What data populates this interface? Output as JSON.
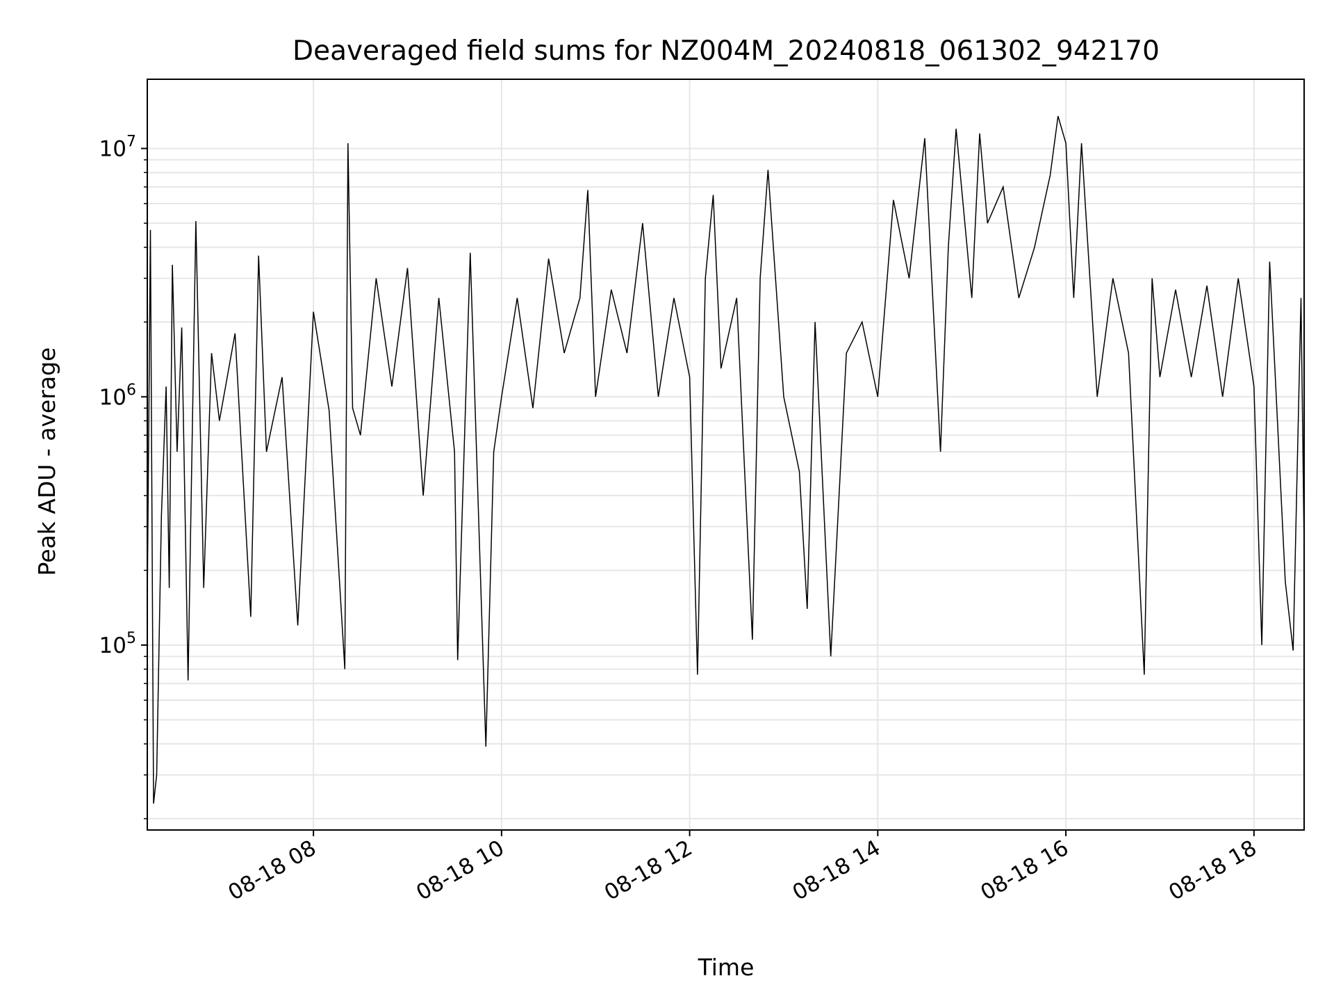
{
  "chart_data": {
    "type": "line",
    "title": "Deaveraged field sums for NZ004M_20240818_061302_942170",
    "xlabel": "Time",
    "ylabel": "Peak ADU - average",
    "y_scale": "log",
    "ylim": [
      18000,
      19000000
    ],
    "xlim": [
      "2024-08-18 06:14",
      "2024-08-18 18:32"
    ],
    "grid": true,
    "line_color": "#000000",
    "grid_color": "#e6e6e6",
    "x_ticks": [
      {
        "time": "2024-08-18 08:00",
        "label": "08-18 08"
      },
      {
        "time": "2024-08-18 10:00",
        "label": "08-18 10"
      },
      {
        "time": "2024-08-18 12:00",
        "label": "08-18 12"
      },
      {
        "time": "2024-08-18 14:00",
        "label": "08-18 14"
      },
      {
        "time": "2024-08-18 16:00",
        "label": "08-18 16"
      },
      {
        "time": "2024-08-18 18:00",
        "label": "08-18 18"
      }
    ],
    "y_ticks": [
      {
        "value": 100000,
        "base": "10",
        "exp": "5"
      },
      {
        "value": 1000000,
        "base": "10",
        "exp": "6"
      },
      {
        "value": 10000000,
        "base": "10",
        "exp": "7"
      }
    ],
    "series": [
      {
        "x": [
          "2024-08-18 06:14",
          "2024-08-18 06:16",
          "2024-08-18 06:18",
          "2024-08-18 06:20",
          "2024-08-18 06:23",
          "2024-08-18 06:26",
          "2024-08-18 06:28",
          "2024-08-18 06:30",
          "2024-08-18 06:33",
          "2024-08-18 06:36",
          "2024-08-18 06:40",
          "2024-08-18 06:45",
          "2024-08-18 06:50",
          "2024-08-18 06:55",
          "2024-08-18 07:00",
          "2024-08-18 07:10",
          "2024-08-18 07:20",
          "2024-08-18 07:25",
          "2024-08-18 07:30",
          "2024-08-18 07:40",
          "2024-08-18 07:50",
          "2024-08-18 08:00",
          "2024-08-18 08:10",
          "2024-08-18 08:20",
          "2024-08-18 08:22",
          "2024-08-18 08:25",
          "2024-08-18 08:30",
          "2024-08-18 08:40",
          "2024-08-18 08:50",
          "2024-08-18 09:00",
          "2024-08-18 09:10",
          "2024-08-18 09:20",
          "2024-08-18 09:30",
          "2024-08-18 09:32",
          "2024-08-18 09:40",
          "2024-08-18 09:50",
          "2024-08-18 09:55",
          "2024-08-18 10:00",
          "2024-08-18 10:10",
          "2024-08-18 10:20",
          "2024-08-18 10:30",
          "2024-08-18 10:40",
          "2024-08-18 10:50",
          "2024-08-18 10:55",
          "2024-08-18 11:00",
          "2024-08-18 11:10",
          "2024-08-18 11:20",
          "2024-08-18 11:30",
          "2024-08-18 11:40",
          "2024-08-18 11:50",
          "2024-08-18 12:00",
          "2024-08-18 12:05",
          "2024-08-18 12:10",
          "2024-08-18 12:15",
          "2024-08-18 12:20",
          "2024-08-18 12:30",
          "2024-08-18 12:40",
          "2024-08-18 12:45",
          "2024-08-18 12:50",
          "2024-08-18 13:00",
          "2024-08-18 13:10",
          "2024-08-18 13:15",
          "2024-08-18 13:20",
          "2024-08-18 13:30",
          "2024-08-18 13:40",
          "2024-08-18 13:50",
          "2024-08-18 14:00",
          "2024-08-18 14:10",
          "2024-08-18 14:20",
          "2024-08-18 14:30",
          "2024-08-18 14:40",
          "2024-08-18 14:45",
          "2024-08-18 14:50",
          "2024-08-18 15:00",
          "2024-08-18 15:05",
          "2024-08-18 15:10",
          "2024-08-18 15:20",
          "2024-08-18 15:30",
          "2024-08-18 15:40",
          "2024-08-18 15:50",
          "2024-08-18 15:55",
          "2024-08-18 16:00",
          "2024-08-18 16:05",
          "2024-08-18 16:10",
          "2024-08-18 16:20",
          "2024-08-18 16:30",
          "2024-08-18 16:40",
          "2024-08-18 16:50",
          "2024-08-18 16:55",
          "2024-08-18 17:00",
          "2024-08-18 17:10",
          "2024-08-18 17:20",
          "2024-08-18 17:30",
          "2024-08-18 17:40",
          "2024-08-18 17:50",
          "2024-08-18 18:00",
          "2024-08-18 18:05",
          "2024-08-18 18:10",
          "2024-08-18 18:20",
          "2024-08-18 18:25",
          "2024-08-18 18:30",
          "2024-08-18 18:32"
        ],
        "y": [
          150000,
          4700000,
          23000,
          30000,
          330000,
          1100000,
          170000,
          3400000,
          600000,
          1900000,
          72000,
          5100000,
          170000,
          1500000,
          800000,
          1800000,
          130000,
          3700000,
          600000,
          1200000,
          120000,
          2200000,
          880000,
          80000,
          10500000,
          900000,
          700000,
          3000000,
          1100000,
          3300000,
          400000,
          2500000,
          600000,
          87000,
          3800000,
          39000,
          600000,
          1000000,
          2500000,
          900000,
          3600000,
          1500000,
          2500000,
          6800000,
          1000000,
          2700000,
          1500000,
          5000000,
          1000000,
          2500000,
          1200000,
          76000,
          3000000,
          6500000,
          1300000,
          2500000,
          105000,
          3000000,
          8200000,
          1000000,
          500000,
          140000,
          2000000,
          90000,
          1500000,
          2000000,
          1000000,
          6200000,
          3000000,
          11000000,
          600000,
          4000000,
          12000000,
          2500000,
          11500000,
          5000000,
          7000000,
          2500000,
          4000000,
          7800000,
          13500000,
          10500000,
          2500000,
          10500000,
          1000000,
          3000000,
          1500000,
          76000,
          3000000,
          1200000,
          2700000,
          1200000,
          2800000,
          1000000,
          3000000,
          1100000,
          100000,
          3500000,
          180000,
          95000,
          2500000,
          250000
        ]
      }
    ]
  }
}
